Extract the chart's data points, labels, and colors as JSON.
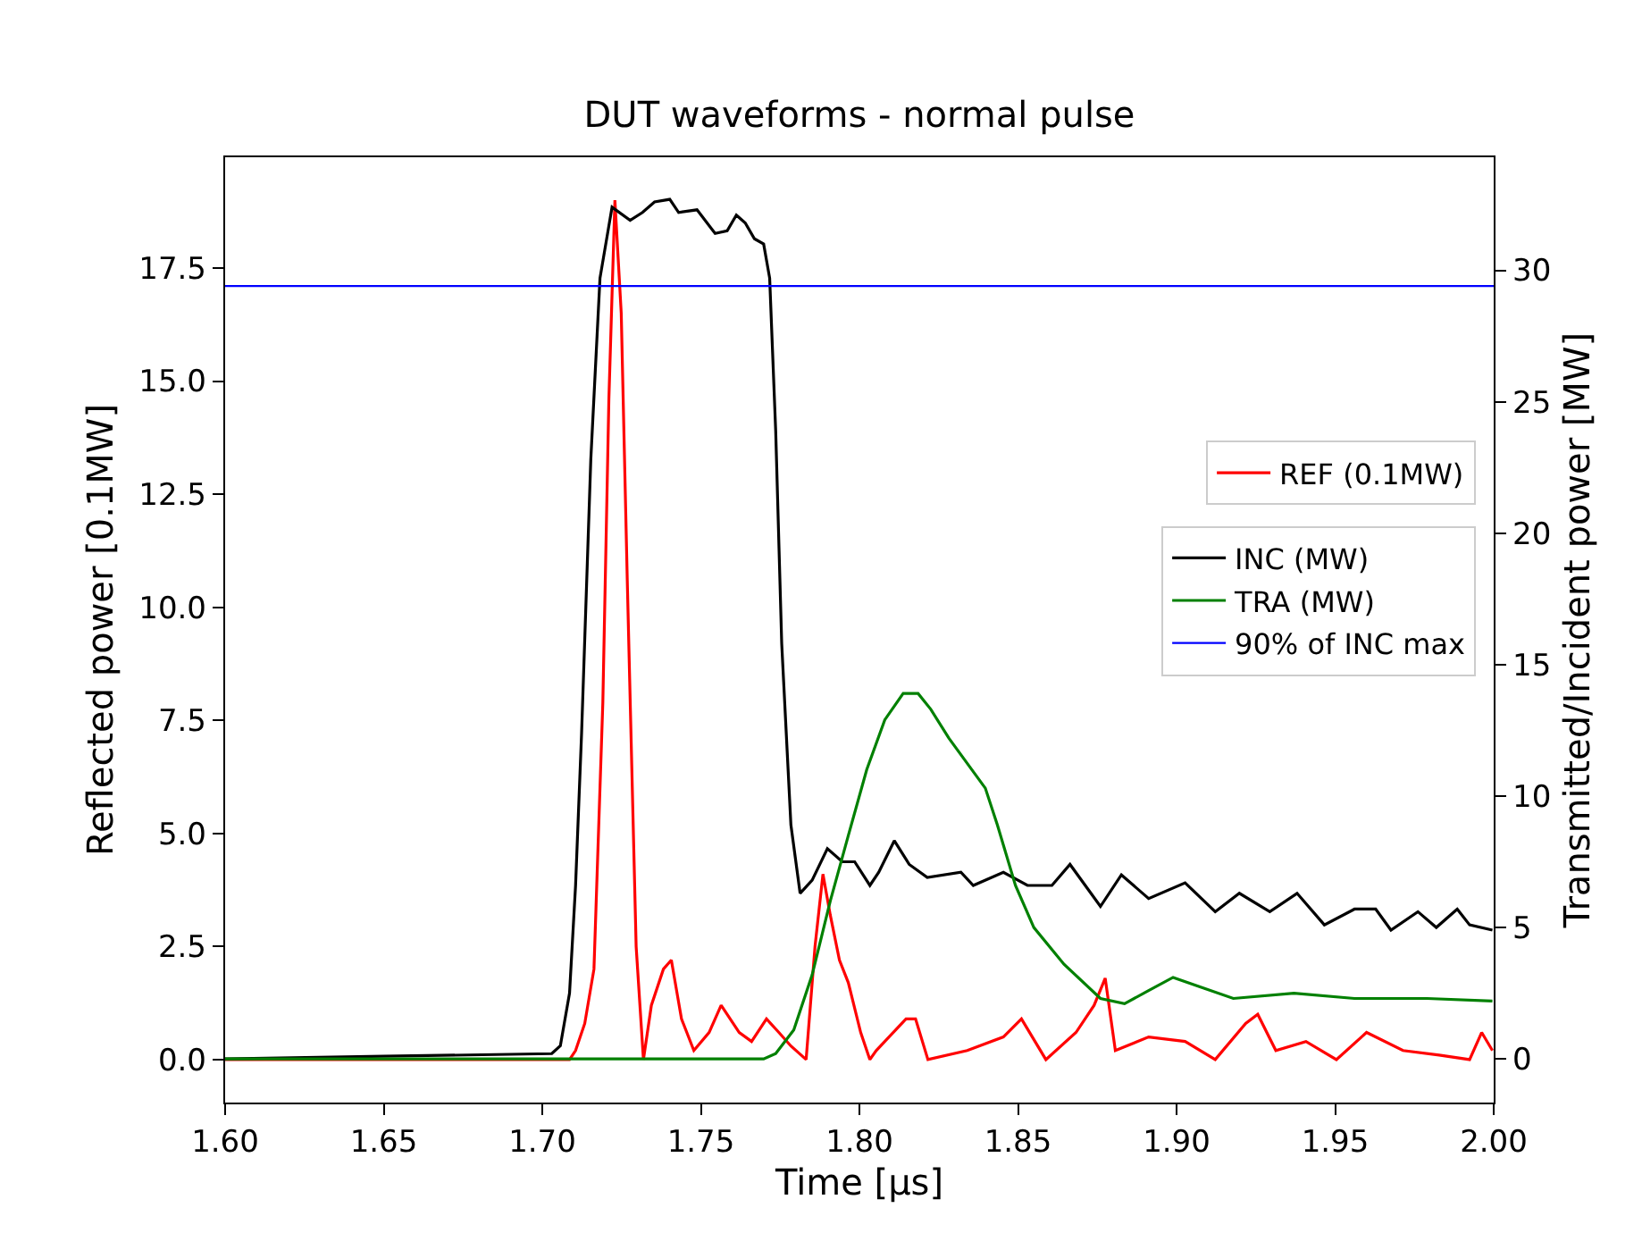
{
  "chart_data": {
    "type": "line",
    "title": "DUT waveforms - normal pulse",
    "xlabel": "Time [μs]",
    "ylabel": "Reflected power [0.1MW]",
    "y2label": "Transmitted/Incident power [MW]",
    "xlim": [
      1.6,
      2.0
    ],
    "xticks": [
      {
        "value": 1.6,
        "label": "1.60"
      },
      {
        "value": 1.65,
        "label": "1.65"
      },
      {
        "value": 1.7,
        "label": "1.70"
      },
      {
        "value": 1.75,
        "label": "1.75"
      },
      {
        "value": 1.8,
        "label": "1.80"
      },
      {
        "value": 1.85,
        "label": "1.85"
      },
      {
        "value": 1.9,
        "label": "1.90"
      },
      {
        "value": 1.95,
        "label": "1.95"
      },
      {
        "value": 2.0,
        "label": "2.00"
      }
    ],
    "ylim": [
      -0.95,
      19.95
    ],
    "yticks": [
      {
        "value": 0,
        "label": "0.0"
      },
      {
        "value": 2.5,
        "label": "2.5"
      },
      {
        "value": 5,
        "label": "5.0"
      },
      {
        "value": 7.5,
        "label": "7.5"
      },
      {
        "value": 10,
        "label": "10.0"
      },
      {
        "value": 12.5,
        "label": "12.5"
      },
      {
        "value": 15,
        "label": "15.0"
      },
      {
        "value": 17.5,
        "label": "17.5"
      }
    ],
    "y2lim": [
      -1.66,
      34.3
    ],
    "y2ticks": [
      0,
      5,
      10,
      15,
      20,
      25,
      30
    ],
    "legend": "right",
    "grid": false,
    "marker": "none",
    "line_style": "solid",
    "series": [
      {
        "name": "REF (0.1MW)",
        "color": "#ff0000",
        "x": [
          1.6,
          1.7086,
          1.7105,
          1.7134,
          1.7163,
          1.7191,
          1.721,
          1.7229,
          1.7249,
          1.7268,
          1.7296,
          1.7319,
          1.7344,
          1.7382,
          1.7407,
          1.7439,
          1.7478,
          1.7526,
          1.7564,
          1.7621,
          1.766,
          1.7707,
          1.7746,
          1.7784,
          1.7832,
          1.786,
          1.7885,
          1.7908,
          1.7937,
          1.7965,
          1.8004,
          1.8033,
          1.8053,
          1.808,
          1.8147,
          1.8177,
          1.8216,
          1.834,
          1.8454,
          1.8511,
          1.8588,
          1.8683,
          1.874,
          1.8775,
          1.8807,
          1.8912,
          1.9027,
          1.9122,
          1.9218,
          1.9256,
          1.9313,
          1.9408,
          1.9504,
          1.9599,
          1.9714,
          1.9828,
          1.9924,
          1.9962,
          1.9996
        ],
        "values": [
          0,
          0,
          0.2,
          0.8,
          2.0,
          7.9,
          14.6,
          19.0,
          16.5,
          10.6,
          2.5,
          0,
          1.2,
          2.0,
          2.2,
          0.9,
          0.2,
          0.6,
          1.2,
          0.6,
          0.4,
          0.9,
          0.6,
          0.3,
          0,
          2.5,
          4.1,
          3.2,
          2.2,
          1.7,
          0.6,
          0,
          0.2,
          0.4,
          0.9,
          0.9,
          0,
          0.2,
          0.5,
          0.9,
          0,
          0.6,
          1.2,
          1.8,
          0.2,
          0.5,
          0.4,
          0,
          0.8,
          1.0,
          0.2,
          0.4,
          0,
          0.6,
          0.2,
          0.1,
          0,
          0.6,
          0.2
        ]
      },
      {
        "name": "INC (MW)",
        "color": "#000000",
        "axis": "y2",
        "x": [
          1.6,
          1.65,
          1.703,
          1.7057,
          1.7086,
          1.7105,
          1.7124,
          1.7153,
          1.7182,
          1.722,
          1.7277,
          1.7316,
          1.7354,
          1.7402,
          1.743,
          1.7488,
          1.7545,
          1.7583,
          1.7612,
          1.764,
          1.7669,
          1.7698,
          1.7717,
          1.7736,
          1.7755,
          1.7784,
          1.7813,
          1.7851,
          1.7899,
          1.7946,
          1.7985,
          1.8033,
          1.8061,
          1.811,
          1.8157,
          1.8214,
          1.832,
          1.8359,
          1.8454,
          1.853,
          1.8607,
          1.8664,
          1.876,
          1.8826,
          1.8912,
          1.9027,
          1.9122,
          1.9198,
          1.9294,
          1.938,
          1.9466,
          1.9561,
          1.9628,
          1.9676,
          1.9761,
          1.9819,
          1.9885,
          1.9924,
          1.9996
        ],
        "values": [
          0.0,
          0.1,
          0.2,
          0.5,
          2.5,
          6.6,
          12.4,
          22.8,
          29.7,
          32.4,
          31.9,
          32.2,
          32.6,
          32.7,
          32.2,
          32.3,
          31.4,
          31.5,
          32.1,
          31.8,
          31.2,
          31.0,
          29.7,
          23.9,
          15.8,
          8.9,
          6.3,
          6.8,
          8.0,
          7.5,
          7.5,
          6.6,
          7.1,
          8.3,
          7.4,
          6.9,
          7.1,
          6.6,
          7.1,
          6.6,
          6.6,
          7.4,
          5.8,
          7.0,
          6.1,
          6.7,
          5.6,
          6.3,
          5.6,
          6.3,
          5.1,
          5.7,
          5.7,
          4.9,
          5.6,
          5.0,
          5.7,
          5.1,
          4.9
        ]
      },
      {
        "name": "TRA (MW)",
        "color": "#008000",
        "axis": "y2",
        "x": [
          1.6,
          1.7698,
          1.7736,
          1.7793,
          1.7851,
          1.7908,
          1.7965,
          1.8023,
          1.808,
          1.8138,
          1.8185,
          1.8225,
          1.8282,
          1.8397,
          1.8435,
          1.8492,
          1.855,
          1.8645,
          1.876,
          1.8836,
          1.8912,
          1.8989,
          1.9084,
          1.9179,
          1.937,
          1.9561,
          1.979,
          1.9996
        ],
        "values": [
          0,
          0,
          0.2,
          1.1,
          3.2,
          6.0,
          8.5,
          11.0,
          12.9,
          13.9,
          13.9,
          13.3,
          12.2,
          10.3,
          8.9,
          6.6,
          5.0,
          3.6,
          2.3,
          2.1,
          2.6,
          3.1,
          2.7,
          2.3,
          2.5,
          2.3,
          2.3,
          2.2
        ]
      }
    ],
    "ref_lines": [
      {
        "axis": "y2",
        "value": 29.4,
        "label": "90% of INC max",
        "color": "#0000ff"
      }
    ]
  }
}
